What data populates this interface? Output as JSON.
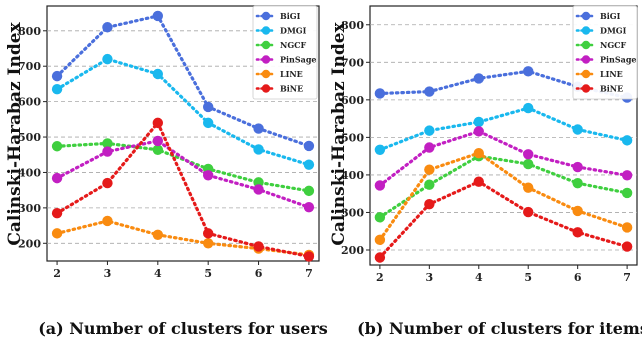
{
  "figure": {
    "colors": {
      "BiGI": "#4a6fdc",
      "DMGI": "#19b8ee",
      "NGCF": "#3fcf3f",
      "PinSage": "#c21fc2",
      "LINE": "#f98b10",
      "BiNE": "#e51a1a"
    }
  },
  "chart_data": [
    {
      "type": "line",
      "panel_id": "a",
      "title": "",
      "xlabel": "(a) Number of clusters for users",
      "ylabel": "Calinski-Harabaz Index",
      "x": [
        2,
        3,
        4,
        5,
        6,
        7
      ],
      "xlim": [
        1.8,
        7.2
      ],
      "ylim": [
        150,
        870
      ],
      "yticks": [
        200,
        300,
        400,
        500,
        600,
        700,
        800
      ],
      "grid": "horizontal dashed",
      "legend_position": "top-right",
      "series": [
        {
          "name": "BiGI",
          "color": "#4a6fdc",
          "values": [
            672,
            810,
            842,
            585,
            524,
            475
          ]
        },
        {
          "name": "DMGI",
          "color": "#19b8ee",
          "values": [
            635,
            720,
            678,
            540,
            465,
            422
          ]
        },
        {
          "name": "NGCF",
          "color": "#3fcf3f",
          "values": [
            474,
            482,
            464,
            410,
            372,
            348
          ]
        },
        {
          "name": "PinSage",
          "color": "#c21fc2",
          "values": [
            384,
            459,
            489,
            392,
            352,
            302
          ]
        },
        {
          "name": "LINE",
          "color": "#f98b10",
          "values": [
            228,
            263,
            224,
            200,
            185,
            167
          ]
        },
        {
          "name": "BiNE",
          "color": "#e51a1a",
          "values": [
            285,
            370,
            540,
            228,
            191,
            163
          ]
        }
      ]
    },
    {
      "type": "line",
      "panel_id": "b",
      "title": "",
      "xlabel": "(b) Number of clusters for items",
      "ylabel": "Calinski-Harabaz Index",
      "x": [
        2,
        3,
        4,
        5,
        6,
        7
      ],
      "xlim": [
        1.8,
        7.2
      ],
      "ylim": [
        160,
        850
      ],
      "yticks": [
        200,
        300,
        400,
        500,
        600,
        700,
        800
      ],
      "grid": "horizontal dashed",
      "legend_position": "top-right",
      "series": [
        {
          "name": "BiGI",
          "color": "#4a6fdc",
          "values": [
            617,
            622,
            657,
            676,
            635,
            606
          ]
        },
        {
          "name": "DMGI",
          "color": "#19b8ee",
          "values": [
            467,
            518,
            541,
            578,
            521,
            492
          ]
        },
        {
          "name": "NGCF",
          "color": "#3fcf3f",
          "values": [
            287,
            374,
            450,
            429,
            378,
            352
          ]
        },
        {
          "name": "PinSage",
          "color": "#c21fc2",
          "values": [
            372,
            473,
            516,
            455,
            421,
            399
          ]
        },
        {
          "name": "LINE",
          "color": "#f98b10",
          "values": [
            227,
            414,
            458,
            366,
            304,
            260
          ]
        },
        {
          "name": "BiNE",
          "color": "#e51a1a",
          "values": [
            180,
            322,
            382,
            301,
            247,
            209
          ]
        }
      ]
    }
  ]
}
